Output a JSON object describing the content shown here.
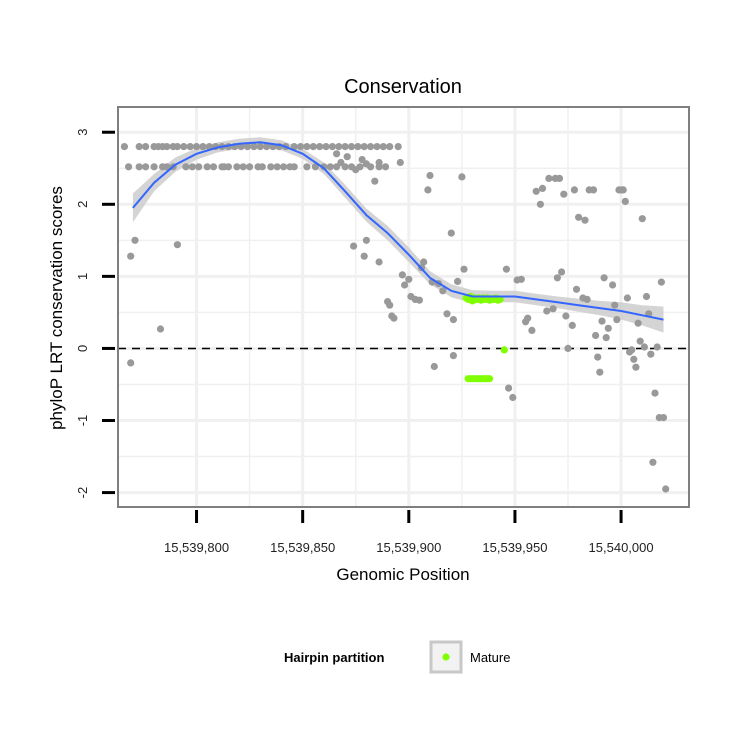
{
  "chart_data": {
    "type": "scatter",
    "title": "Conservation",
    "xlabel": "Genomic Position",
    "ylabel": "phyloP LRT conservation scores",
    "xlim": [
      15539763,
      15540032
    ],
    "ylim": [
      -2.2,
      3.35
    ],
    "x_ticks": [
      {
        "value": 15539800,
        "label": "15,539,800"
      },
      {
        "value": 15539850,
        "label": "15,539,850"
      },
      {
        "value": 15539900,
        "label": "15,539,900"
      },
      {
        "value": 15539950,
        "label": "15,539,950"
      },
      {
        "value": 15540000,
        "label": "15,540,000"
      }
    ],
    "y_ticks": [
      {
        "value": 3,
        "label": "3"
      },
      {
        "value": 2,
        "label": "2"
      },
      {
        "value": 1,
        "label": "1"
      },
      {
        "value": 0,
        "label": "0"
      },
      {
        "value": -1,
        "label": "-1"
      },
      {
        "value": -2,
        "label": "-2"
      }
    ],
    "reference_line": {
      "y": 0,
      "style": "dashed"
    },
    "legend": {
      "title": "Hairpin partition",
      "entries": [
        "Mature"
      ],
      "placement": "bottom"
    },
    "colors": {
      "points": "#999999",
      "mature": "#7fff00",
      "smooth": "#3366ff",
      "band": "#cccccc",
      "panel_border": "#7f7f7f",
      "grid": "#f0f0f0"
    },
    "series": [
      {
        "name": "background",
        "points": [
          [
            15539766,
            2.8
          ],
          [
            15539768,
            2.52
          ],
          [
            15539769,
            1.28
          ],
          [
            15539769,
            -0.2
          ],
          [
            15539771,
            1.5
          ],
          [
            15539773,
            2.52
          ],
          [
            15539776,
            2.52
          ],
          [
            15539780,
            2.52
          ],
          [
            15539784,
            2.52
          ],
          [
            15539786,
            2.52
          ],
          [
            15539789,
            2.52
          ],
          [
            15539791,
            1.44
          ],
          [
            15539795,
            2.52
          ],
          [
            15539798,
            2.52
          ],
          [
            15539801,
            2.52
          ],
          [
            15539805,
            2.52
          ],
          [
            15539808,
            2.52
          ],
          [
            15539812,
            2.52
          ],
          [
            15539813,
            2.52
          ],
          [
            15539815,
            2.52
          ],
          [
            15539819,
            2.52
          ],
          [
            15539822,
            2.52
          ],
          [
            15539825,
            2.52
          ],
          [
            15539829,
            2.52
          ],
          [
            15539831,
            2.52
          ],
          [
            15539835,
            2.52
          ],
          [
            15539838,
            2.52
          ],
          [
            15539841,
            2.52
          ],
          [
            15539844,
            2.52
          ],
          [
            15539846,
            2.52
          ],
          [
            15539852,
            2.52
          ],
          [
            15539856,
            2.52
          ],
          [
            15539860,
            2.52
          ],
          [
            15539863,
            2.52
          ],
          [
            15539866,
            2.52
          ],
          [
            15539870,
            2.52
          ],
          [
            15539873,
            2.52
          ],
          [
            15539877,
            2.52
          ],
          [
            15539882,
            2.52
          ],
          [
            15539886,
            2.52
          ],
          [
            15539889,
            2.52
          ],
          [
            15539773,
            2.8
          ],
          [
            15539776,
            2.8
          ],
          [
            15539780,
            2.8
          ],
          [
            15539782,
            2.8
          ],
          [
            15539784,
            2.8
          ],
          [
            15539786,
            2.8
          ],
          [
            15539789,
            2.8
          ],
          [
            15539791,
            2.8
          ],
          [
            15539794,
            2.8
          ],
          [
            15539797,
            2.8
          ],
          [
            15539800,
            2.8
          ],
          [
            15539803,
            2.8
          ],
          [
            15539806,
            2.8
          ],
          [
            15539809,
            2.8
          ],
          [
            15539812,
            2.8
          ],
          [
            15539815,
            2.8
          ],
          [
            15539818,
            2.8
          ],
          [
            15539821,
            2.8
          ],
          [
            15539824,
            2.8
          ],
          [
            15539827,
            2.8
          ],
          [
            15539830,
            2.8
          ],
          [
            15539833,
            2.8
          ],
          [
            15539836,
            2.8
          ],
          [
            15539839,
            2.8
          ],
          [
            15539842,
            2.8
          ],
          [
            15539846,
            2.8
          ],
          [
            15539849,
            2.8
          ],
          [
            15539852,
            2.8
          ],
          [
            15539855,
            2.8
          ],
          [
            15539858,
            2.8
          ],
          [
            15539861,
            2.8
          ],
          [
            15539864,
            2.8
          ],
          [
            15539867,
            2.8
          ],
          [
            15539870,
            2.8
          ],
          [
            15539873,
            2.8
          ],
          [
            15539876,
            2.8
          ],
          [
            15539879,
            2.8
          ],
          [
            15539882,
            2.8
          ],
          [
            15539885,
            2.8
          ],
          [
            15539888,
            2.8
          ],
          [
            15539891,
            2.8
          ],
          [
            15539895,
            2.8
          ],
          [
            15539783,
            0.27
          ],
          [
            15539866,
            2.7
          ],
          [
            15539868,
            2.58
          ],
          [
            15539871,
            2.66
          ],
          [
            15539875,
            2.48
          ],
          [
            15539878,
            2.62
          ],
          [
            15539880,
            2.56
          ],
          [
            15539884,
            2.32
          ],
          [
            15539886,
            2.58
          ],
          [
            15539874,
            1.42
          ],
          [
            15539879,
            1.28
          ],
          [
            15539880,
            1.5
          ],
          [
            15539886,
            1.2
          ],
          [
            15539890,
            0.65
          ],
          [
            15539891,
            0.6
          ],
          [
            15539892,
            0.45
          ],
          [
            15539893,
            0.42
          ],
          [
            15539896,
            2.58
          ],
          [
            15539897,
            1.02
          ],
          [
            15539898,
            0.88
          ],
          [
            15539900,
            0.96
          ],
          [
            15539901,
            0.72
          ],
          [
            15539903,
            0.68
          ],
          [
            15539905,
            0.67
          ],
          [
            15539906,
            1.12
          ],
          [
            15539907,
            1.2
          ],
          [
            15539909,
            2.2
          ],
          [
            15539910,
            2.4
          ],
          [
            15539911,
            0.92
          ],
          [
            15539912,
            -0.25
          ],
          [
            15539914,
            0.9
          ],
          [
            15539916,
            0.8
          ],
          [
            15539918,
            0.48
          ],
          [
            15539920,
            1.6
          ],
          [
            15539921,
            0.4
          ],
          [
            15539921,
            -0.1
          ],
          [
            15539923,
            0.93
          ],
          [
            15539925,
            2.38
          ],
          [
            15539926,
            1.1
          ],
          [
            15539929,
            0.72
          ],
          [
            15539946,
            1.1
          ],
          [
            15539947,
            -0.55
          ],
          [
            15539949,
            -0.68
          ],
          [
            15539951,
            0.95
          ],
          [
            15539953,
            0.96
          ],
          [
            15539955,
            0.37
          ],
          [
            15539956,
            0.42
          ],
          [
            15539958,
            0.25
          ],
          [
            15539960,
            2.18
          ],
          [
            15539962,
            2.0
          ],
          [
            15539963,
            2.22
          ],
          [
            15539965,
            0.52
          ],
          [
            15539966,
            2.36
          ],
          [
            15539968,
            0.55
          ],
          [
            15539969,
            2.36
          ],
          [
            15539970,
            0.98
          ],
          [
            15539971,
            2.36
          ],
          [
            15539972,
            1.06
          ],
          [
            15539973,
            2.14
          ],
          [
            15539974,
            0.45
          ],
          [
            15539975,
            0.0
          ],
          [
            15539977,
            0.32
          ],
          [
            15539978,
            2.2
          ],
          [
            15539979,
            0.82
          ],
          [
            15539980,
            1.82
          ],
          [
            15539982,
            0.7
          ],
          [
            15539983,
            1.78
          ],
          [
            15539984,
            0.68
          ],
          [
            15539985,
            2.2
          ],
          [
            15539987,
            2.2
          ],
          [
            15539988,
            0.18
          ],
          [
            15539989,
            -0.12
          ],
          [
            15539990,
            -0.33
          ],
          [
            15539991,
            0.38
          ],
          [
            15539992,
            0.98
          ],
          [
            15539993,
            0.15
          ],
          [
            15539994,
            0.28
          ],
          [
            15539996,
            0.88
          ],
          [
            15539997,
            0.6
          ],
          [
            15539998,
            0.4
          ],
          [
            15539999,
            2.2
          ],
          [
            15540000,
            2.2
          ],
          [
            15540001,
            2.2
          ],
          [
            15540002,
            2.04
          ],
          [
            15540003,
            0.7
          ],
          [
            15540004,
            -0.05
          ],
          [
            15540005,
            -0.02
          ],
          [
            15540006,
            -0.15
          ],
          [
            15540007,
            -0.26
          ],
          [
            15540008,
            0.35
          ],
          [
            15540009,
            0.1
          ],
          [
            15540010,
            1.8
          ],
          [
            15540011,
            0.02
          ],
          [
            15540012,
            0.72
          ],
          [
            15540013,
            0.48
          ],
          [
            15540014,
            -0.08
          ],
          [
            15540015,
            -1.58
          ],
          [
            15540016,
            -0.62
          ],
          [
            15540017,
            0.02
          ],
          [
            15540018,
            -0.96
          ],
          [
            15540019,
            0.92
          ],
          [
            15540020,
            -0.96
          ],
          [
            15540021,
            -1.95
          ]
        ]
      },
      {
        "name": "Mature",
        "points": [
          [
            15539927,
            0.7
          ],
          [
            15539928,
            0.68
          ],
          [
            15539929,
            0.72
          ],
          [
            15539930,
            0.66
          ],
          [
            15539931,
            0.7
          ],
          [
            15539932,
            0.68
          ],
          [
            15539933,
            0.7
          ],
          [
            15539934,
            0.67
          ],
          [
            15539935,
            0.7
          ],
          [
            15539936,
            0.68
          ],
          [
            15539937,
            0.7
          ],
          [
            15539938,
            0.67
          ],
          [
            15539939,
            0.69
          ],
          [
            15539940,
            0.68
          ],
          [
            15539941,
            0.7
          ],
          [
            15539942,
            0.67
          ],
          [
            15539943,
            0.68
          ],
          [
            15539928,
            -0.42
          ],
          [
            15539929,
            -0.42
          ],
          [
            15539930,
            -0.42
          ],
          [
            15539931,
            -0.42
          ],
          [
            15539932,
            -0.42
          ],
          [
            15539933,
            -0.42
          ],
          [
            15539934,
            -0.42
          ],
          [
            15539935,
            -0.42
          ],
          [
            15539936,
            -0.42
          ],
          [
            15539937,
            -0.42
          ],
          [
            15539938,
            -0.42
          ],
          [
            15539945,
            -0.02
          ]
        ]
      }
    ],
    "smooth_curve": [
      [
        15539770,
        1.95
      ],
      [
        15539780,
        2.3
      ],
      [
        15539790,
        2.55
      ],
      [
        15539800,
        2.7
      ],
      [
        15539810,
        2.79
      ],
      [
        15539820,
        2.84
      ],
      [
        15539830,
        2.86
      ],
      [
        15539840,
        2.82
      ],
      [
        15539850,
        2.7
      ],
      [
        15539860,
        2.5
      ],
      [
        15539870,
        2.18
      ],
      [
        15539880,
        1.85
      ],
      [
        15539890,
        1.6
      ],
      [
        15539900,
        1.3
      ],
      [
        15539910,
        0.98
      ],
      [
        15539920,
        0.8
      ],
      [
        15539930,
        0.72
      ],
      [
        15539940,
        0.72
      ],
      [
        15539950,
        0.72
      ],
      [
        15539960,
        0.68
      ],
      [
        15539970,
        0.64
      ],
      [
        15539980,
        0.6
      ],
      [
        15539990,
        0.56
      ],
      [
        15540000,
        0.52
      ],
      [
        15540010,
        0.46
      ],
      [
        15540020,
        0.4
      ]
    ],
    "confidence_band": [
      [
        15539770,
        1.75,
        2.15
      ],
      [
        15539780,
        2.18,
        2.42
      ],
      [
        15539790,
        2.45,
        2.65
      ],
      [
        15539800,
        2.62,
        2.78
      ],
      [
        15539810,
        2.72,
        2.86
      ],
      [
        15539820,
        2.77,
        2.91
      ],
      [
        15539830,
        2.79,
        2.93
      ],
      [
        15539840,
        2.75,
        2.89
      ],
      [
        15539850,
        2.63,
        2.77
      ],
      [
        15539860,
        2.42,
        2.58
      ],
      [
        15539870,
        2.09,
        2.27
      ],
      [
        15539880,
        1.76,
        1.94
      ],
      [
        15539890,
        1.5,
        1.7
      ],
      [
        15539900,
        1.2,
        1.4
      ],
      [
        15539910,
        0.89,
        1.07
      ],
      [
        15539920,
        0.71,
        0.89
      ],
      [
        15539930,
        0.63,
        0.81
      ],
      [
        15539940,
        0.64,
        0.8
      ],
      [
        15539950,
        0.64,
        0.8
      ],
      [
        15539960,
        0.6,
        0.76
      ],
      [
        15539970,
        0.56,
        0.72
      ],
      [
        15539980,
        0.51,
        0.69
      ],
      [
        15539990,
        0.46,
        0.66
      ],
      [
        15540000,
        0.4,
        0.64
      ],
      [
        15540010,
        0.32,
        0.6
      ],
      [
        15540020,
        0.22,
        0.58
      ]
    ]
  }
}
